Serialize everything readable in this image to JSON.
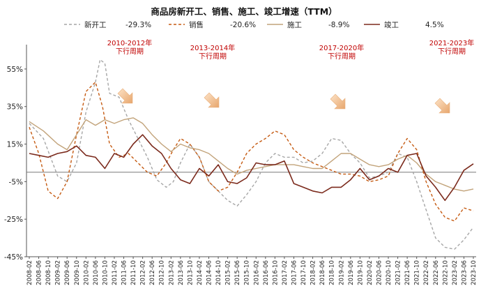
{
  "chart_data": {
    "type": "line",
    "title": "商品房新开工、销售、施工、竣工增速（TTM）",
    "xlabel": "",
    "ylabel": "",
    "ylim": [
      -45,
      65
    ],
    "yticks": [
      "55%",
      "35%",
      "15%",
      "-5%",
      "-25%",
      "-45%"
    ],
    "ytick_values": [
      55,
      35,
      15,
      -5,
      -25,
      -45
    ],
    "reference_line": 0,
    "grid": false,
    "legend_position": "top",
    "x_ticks": [
      "2008-02",
      "2008-06",
      "2008-10",
      "2009-02",
      "2009-06",
      "2009-10",
      "2010-02",
      "2010-06",
      "2010-10",
      "2011-02",
      "2011-06",
      "2011-10",
      "2012-02",
      "2012-06",
      "2012-10",
      "2013-02",
      "2013-06",
      "2013-10",
      "2014-02",
      "2014-06",
      "2014-10",
      "2015-02",
      "2015-06",
      "2015-10",
      "2016-02",
      "2016-06",
      "2016-10",
      "2017-02",
      "2017-06",
      "2017-10",
      "2018-02",
      "2018-06",
      "2018-10",
      "2019-02",
      "2019-06",
      "2019-10",
      "2020-02",
      "2020-06",
      "2020-10",
      "2021-02",
      "2021-06",
      "2021-10",
      "2022-02",
      "2022-06",
      "2022-10",
      "2023-02",
      "2023-06",
      "2023-10"
    ],
    "series": [
      {
        "name": "新开工",
        "legend_value": "-29.3%",
        "color": "#a6a6a6",
        "style": "dashed",
        "points": [
          [
            "2008-02",
            26
          ],
          [
            "2008-08",
            18
          ],
          [
            "2009-02",
            -2
          ],
          [
            "2009-06",
            -5
          ],
          [
            "2009-10",
            5
          ],
          [
            "2010-02",
            32
          ],
          [
            "2010-06",
            48
          ],
          [
            "2010-08",
            60
          ],
          [
            "2010-10",
            58
          ],
          [
            "2010-12",
            42
          ],
          [
            "2011-04",
            40
          ],
          [
            "2011-08",
            28
          ],
          [
            "2011-12",
            18
          ],
          [
            "2012-04",
            8
          ],
          [
            "2012-08",
            -4
          ],
          [
            "2012-12",
            -8
          ],
          [
            "2013-03",
            -5
          ],
          [
            "2013-06",
            5
          ],
          [
            "2013-10",
            15
          ],
          [
            "2014-02",
            8
          ],
          [
            "2014-06",
            -5
          ],
          [
            "2014-10",
            -10
          ],
          [
            "2015-02",
            -15
          ],
          [
            "2015-06",
            -18
          ],
          [
            "2015-10",
            -12
          ],
          [
            "2016-02",
            -5
          ],
          [
            "2016-06",
            5
          ],
          [
            "2016-10",
            10
          ],
          [
            "2017-02",
            8
          ],
          [
            "2017-06",
            8
          ],
          [
            "2017-10",
            5
          ],
          [
            "2018-02",
            6
          ],
          [
            "2018-06",
            10
          ],
          [
            "2018-10",
            18
          ],
          [
            "2019-02",
            17
          ],
          [
            "2019-06",
            10
          ],
          [
            "2019-10",
            5
          ],
          [
            "2020-02",
            -3
          ],
          [
            "2020-06",
            -2
          ],
          [
            "2020-10",
            0
          ],
          [
            "2021-02",
            10
          ],
          [
            "2021-06",
            8
          ],
          [
            "2021-10",
            -5
          ],
          [
            "2022-02",
            -20
          ],
          [
            "2022-06",
            -35
          ],
          [
            "2022-10",
            -40
          ],
          [
            "2023-02",
            -41
          ],
          [
            "2023-06",
            -36
          ],
          [
            "2023-10",
            -29.3
          ]
        ]
      },
      {
        "name": "销售",
        "legend_value": "-20.6%",
        "color": "#c55a11",
        "style": "dashed",
        "points": [
          [
            "2008-02",
            24
          ],
          [
            "2008-06",
            10
          ],
          [
            "2008-10",
            -10
          ],
          [
            "2009-02",
            -14
          ],
          [
            "2009-06",
            -5
          ],
          [
            "2009-10",
            20
          ],
          [
            "2010-02",
            43
          ],
          [
            "2010-06",
            48
          ],
          [
            "2010-09",
            35
          ],
          [
            "2010-12",
            15
          ],
          [
            "2011-04",
            8
          ],
          [
            "2011-08",
            10
          ],
          [
            "2011-12",
            5
          ],
          [
            "2012-04",
            0
          ],
          [
            "2012-08",
            -2
          ],
          [
            "2012-12",
            5
          ],
          [
            "2013-03",
            12
          ],
          [
            "2013-06",
            18
          ],
          [
            "2013-10",
            15
          ],
          [
            "2014-02",
            8
          ],
          [
            "2014-06",
            -5
          ],
          [
            "2014-10",
            -10
          ],
          [
            "2015-02",
            -8
          ],
          [
            "2015-06",
            0
          ],
          [
            "2015-10",
            10
          ],
          [
            "2016-02",
            15
          ],
          [
            "2016-06",
            18
          ],
          [
            "2016-10",
            22
          ],
          [
            "2017-02",
            20
          ],
          [
            "2017-06",
            12
          ],
          [
            "2017-10",
            8
          ],
          [
            "2018-02",
            5
          ],
          [
            "2018-06",
            3
          ],
          [
            "2018-10",
            1
          ],
          [
            "2019-02",
            -1
          ],
          [
            "2019-06",
            -1
          ],
          [
            "2019-10",
            -2
          ],
          [
            "2020-02",
            -5
          ],
          [
            "2020-06",
            -4
          ],
          [
            "2020-10",
            -2
          ],
          [
            "2021-02",
            10
          ],
          [
            "2021-06",
            18
          ],
          [
            "2021-10",
            12
          ],
          [
            "2022-02",
            -5
          ],
          [
            "2022-06",
            -17
          ],
          [
            "2022-10",
            -24
          ],
          [
            "2023-02",
            -26
          ],
          [
            "2023-06",
            -19
          ],
          [
            "2023-10",
            -20.6
          ]
        ]
      },
      {
        "name": "施工",
        "legend_value": "-8.9%",
        "color": "#c2a37a",
        "style": "solid",
        "points": [
          [
            "2008-02",
            27
          ],
          [
            "2008-08",
            22
          ],
          [
            "2009-02",
            15
          ],
          [
            "2009-06",
            12
          ],
          [
            "2009-10",
            20
          ],
          [
            "2010-02",
            28
          ],
          [
            "2010-06",
            25
          ],
          [
            "2010-10",
            28
          ],
          [
            "2011-02",
            26
          ],
          [
            "2011-06",
            28
          ],
          [
            "2011-10",
            29
          ],
          [
            "2012-02",
            26
          ],
          [
            "2012-06",
            20
          ],
          [
            "2012-10",
            15
          ],
          [
            "2013-02",
            11
          ],
          [
            "2013-06",
            15
          ],
          [
            "2013-10",
            13
          ],
          [
            "2014-02",
            12
          ],
          [
            "2014-06",
            10
          ],
          [
            "2014-10",
            6
          ],
          [
            "2015-02",
            2
          ],
          [
            "2015-06",
            -1
          ],
          [
            "2015-10",
            1
          ],
          [
            "2016-02",
            2
          ],
          [
            "2016-06",
            3
          ],
          [
            "2016-10",
            4
          ],
          [
            "2017-02",
            4
          ],
          [
            "2017-06",
            4
          ],
          [
            "2017-10",
            3
          ],
          [
            "2018-02",
            2
          ],
          [
            "2018-06",
            2
          ],
          [
            "2018-10",
            6
          ],
          [
            "2019-02",
            10
          ],
          [
            "2019-06",
            10
          ],
          [
            "2019-10",
            7
          ],
          [
            "2020-02",
            4
          ],
          [
            "2020-06",
            3
          ],
          [
            "2020-10",
            4
          ],
          [
            "2021-02",
            7
          ],
          [
            "2021-06",
            9
          ],
          [
            "2021-10",
            5
          ],
          [
            "2022-02",
            -1
          ],
          [
            "2022-06",
            -5
          ],
          [
            "2022-10",
            -7
          ],
          [
            "2023-02",
            -9
          ],
          [
            "2023-06",
            -10
          ],
          [
            "2023-10",
            -8.9
          ]
        ]
      },
      {
        "name": "竣工",
        "legend_value": "4.5%",
        "color": "#7b2a1c",
        "style": "solid",
        "points": [
          [
            "2008-02",
            10
          ],
          [
            "2008-06",
            9
          ],
          [
            "2008-10",
            8
          ],
          [
            "2009-02",
            10
          ],
          [
            "2009-06",
            11
          ],
          [
            "2009-10",
            14
          ],
          [
            "2010-02",
            9
          ],
          [
            "2010-06",
            8
          ],
          [
            "2010-10",
            2
          ],
          [
            "2011-02",
            10
          ],
          [
            "2011-06",
            8
          ],
          [
            "2011-10",
            15
          ],
          [
            "2012-02",
            20
          ],
          [
            "2012-06",
            14
          ],
          [
            "2012-10",
            10
          ],
          [
            "2013-02",
            2
          ],
          [
            "2013-06",
            -4
          ],
          [
            "2013-10",
            -6
          ],
          [
            "2014-02",
            2
          ],
          [
            "2014-06",
            -2
          ],
          [
            "2014-10",
            4
          ],
          [
            "2015-02",
            -5
          ],
          [
            "2015-06",
            -6
          ],
          [
            "2015-10",
            -3
          ],
          [
            "2016-02",
            5
          ],
          [
            "2016-06",
            4
          ],
          [
            "2016-10",
            4
          ],
          [
            "2017-02",
            6
          ],
          [
            "2017-06",
            -6
          ],
          [
            "2017-10",
            -8
          ],
          [
            "2018-02",
            -10
          ],
          [
            "2018-06",
            -11
          ],
          [
            "2018-10",
            -8
          ],
          [
            "2019-02",
            -8
          ],
          [
            "2019-06",
            -4
          ],
          [
            "2019-10",
            2
          ],
          [
            "2020-02",
            -4
          ],
          [
            "2020-06",
            -2
          ],
          [
            "2020-10",
            2
          ],
          [
            "2021-02",
            0
          ],
          [
            "2021-06",
            9
          ],
          [
            "2021-10",
            10
          ],
          [
            "2022-02",
            -2
          ],
          [
            "2022-06",
            -8
          ],
          [
            "2022-10",
            -15
          ],
          [
            "2023-02",
            -8
          ],
          [
            "2023-06",
            1
          ],
          [
            "2023-10",
            4.5
          ]
        ]
      }
    ],
    "annotations": [
      {
        "label": "2010-2012年\n下行周期"
      },
      {
        "label": "2013-2014年\n下行周期"
      },
      {
        "label": "2017-2020年\n下行周期"
      },
      {
        "label": "2021-2023年\n下行周期"
      }
    ]
  }
}
